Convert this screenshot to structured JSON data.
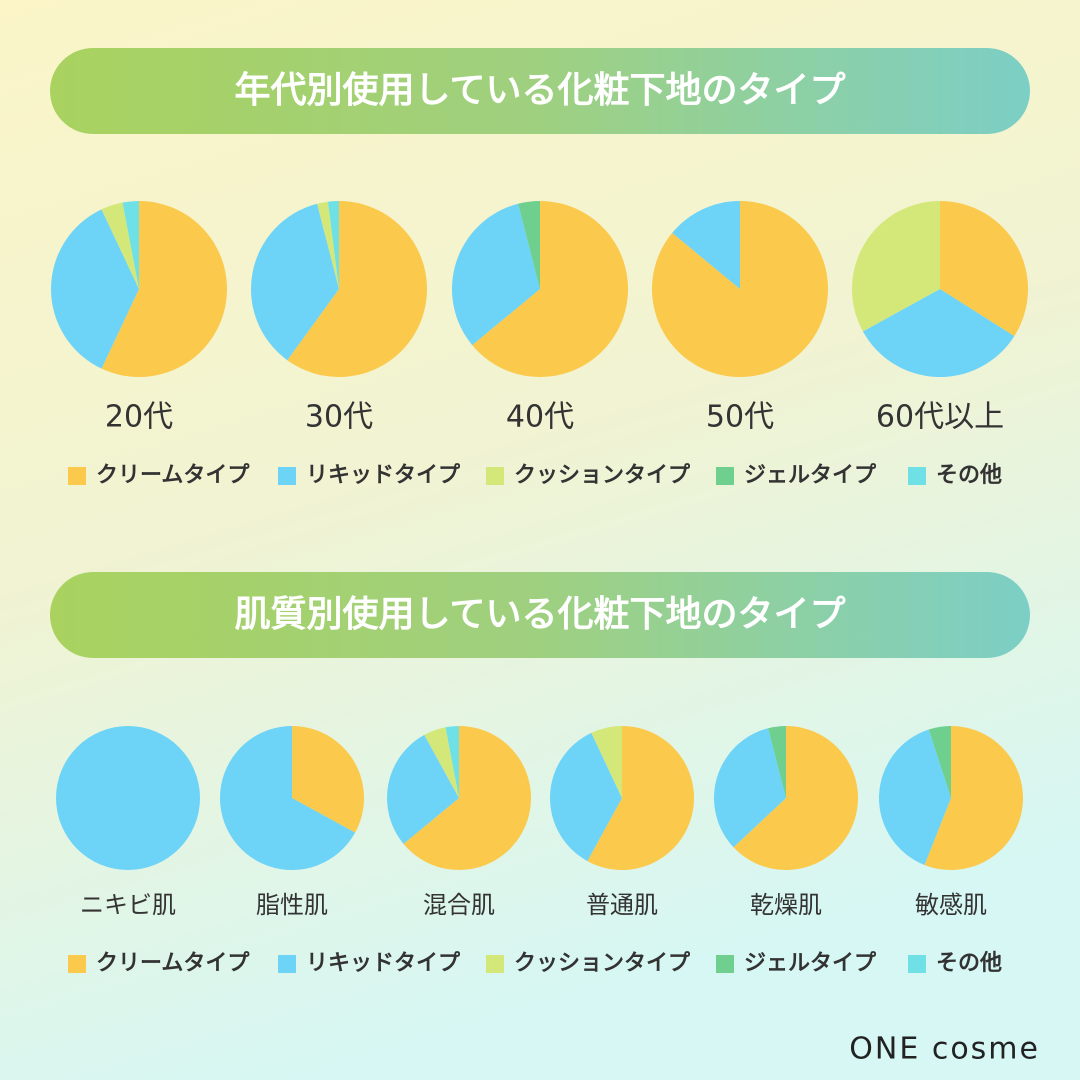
{
  "chart_data": [
    {
      "type": "pie",
      "title": "年代別使用している化粧下地のタイプ",
      "categories": [
        "20代",
        "30代",
        "40代",
        "50代",
        "60代以上"
      ],
      "series": [
        {
          "name": "クリームタイプ",
          "color": "#fbc94b",
          "values": [
            57,
            60,
            64,
            86,
            34
          ]
        },
        {
          "name": "リキッドタイプ",
          "color": "#6dd3f7",
          "values": [
            36,
            36,
            32,
            14,
            33
          ]
        },
        {
          "name": "クッションタイプ",
          "color": "#d4e87a",
          "values": [
            4,
            2,
            0,
            0,
            33
          ]
        },
        {
          "name": "ジェルタイプ",
          "color": "#6fcf8f",
          "values": [
            0,
            0,
            4,
            0,
            0
          ]
        },
        {
          "name": "その他",
          "color": "#6ee0e6",
          "values": [
            3,
            2,
            0,
            0,
            0
          ]
        }
      ]
    },
    {
      "type": "pie",
      "title": "肌質別使用している化粧下地のタイプ",
      "categories": [
        "ニキビ肌",
        "脂性肌",
        "混合肌",
        "普通肌",
        "乾燥肌",
        "敏感肌"
      ],
      "series": [
        {
          "name": "クリームタイプ",
          "color": "#fbc94b",
          "values": [
            0,
            33,
            64,
            58,
            63,
            56
          ]
        },
        {
          "name": "リキッドタイプ",
          "color": "#6dd3f7",
          "values": [
            100,
            67,
            28,
            35,
            33,
            39
          ]
        },
        {
          "name": "クッションタイプ",
          "color": "#d4e87a",
          "values": [
            0,
            0,
            5,
            7,
            0,
            0
          ]
        },
        {
          "name": "ジェルタイプ",
          "color": "#6fcf8f",
          "values": [
            0,
            0,
            0,
            0,
            4,
            5
          ]
        },
        {
          "name": "その他",
          "color": "#6ee0e6",
          "values": [
            0,
            0,
            3,
            0,
            0,
            0
          ]
        }
      ]
    }
  ],
  "brand": "ONE cosme"
}
